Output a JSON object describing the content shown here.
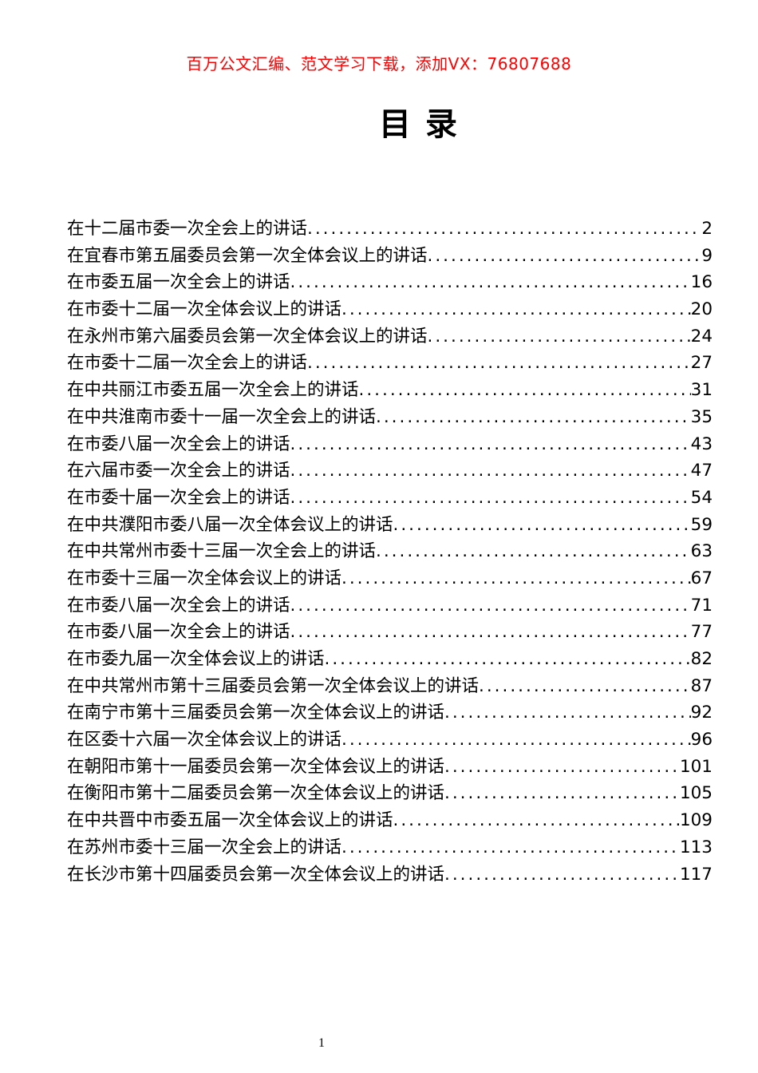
{
  "page": {
    "background_color": "#ffffff",
    "text_color": "#000000"
  },
  "header": {
    "promo_text": "百万公文汇编、范文学习下载，添加VX：76807688",
    "promo_color": "#fe0000"
  },
  "title": "目 录",
  "toc": {
    "entries": [
      {
        "title": "在十二届市委一次全会上的讲话",
        "page": "2"
      },
      {
        "title": "在宜春市第五届委员会第一次全体会议上的讲话",
        "page": "9"
      },
      {
        "title": "在市委五届一次全会上的讲话",
        "page": "16"
      },
      {
        "title": "在市委十二届一次全体会议上的讲话",
        "page": "20"
      },
      {
        "title": "在永州市第六届委员会第一次全体会议上的讲话",
        "page": "24"
      },
      {
        "title": "在市委十二届一次全会上的讲话",
        "page": "27"
      },
      {
        "title": "在中共丽江市委五届一次全会上的讲话",
        "page": "31"
      },
      {
        "title": "在中共淮南市委十一届一次全会上的讲话",
        "page": "35"
      },
      {
        "title": "在市委八届一次全会上的讲话",
        "page": "43"
      },
      {
        "title": "在六届市委一次全会上的讲话",
        "page": "47"
      },
      {
        "title": "在市委十届一次全会上的讲话",
        "page": "54"
      },
      {
        "title": "在中共濮阳市委八届一次全体会议上的讲话",
        "page": "59"
      },
      {
        "title": "在中共常州市委十三届一次全会上的讲话",
        "page": "63"
      },
      {
        "title": "在市委十三届一次全体会议上的讲话",
        "page": "67"
      },
      {
        "title": "在市委八届一次全会上的讲话",
        "page": "71"
      },
      {
        "title": "在市委八届一次全会上的讲话",
        "page": "77"
      },
      {
        "title": "在市委九届一次全体会议上的讲话",
        "page": "82"
      },
      {
        "title": "在中共常州市第十三届委员会第一次全体会议上的讲话",
        "page": "87"
      },
      {
        "title": "在南宁市第十三届委员会第一次全体会议上的讲话",
        "page": "92"
      },
      {
        "title": "在区委十六届一次全体会议上的讲话",
        "page": "96"
      },
      {
        "title": "在朝阳市第十一届委员会第一次全体会议上的讲话",
        "page": "101"
      },
      {
        "title": "在衡阳市第十二届委员会第一次全体会议上的讲话",
        "page": "105"
      },
      {
        "title": "在中共晋中市委五届一次全体会议上的讲话",
        "page": "109"
      },
      {
        "title": "在苏州市委十三届一次全会上的讲话",
        "page": "113"
      },
      {
        "title": "在长沙市第十四届委员会第一次全体会议上的讲话",
        "page": "117"
      }
    ]
  },
  "footer": {
    "page_number": "1"
  }
}
